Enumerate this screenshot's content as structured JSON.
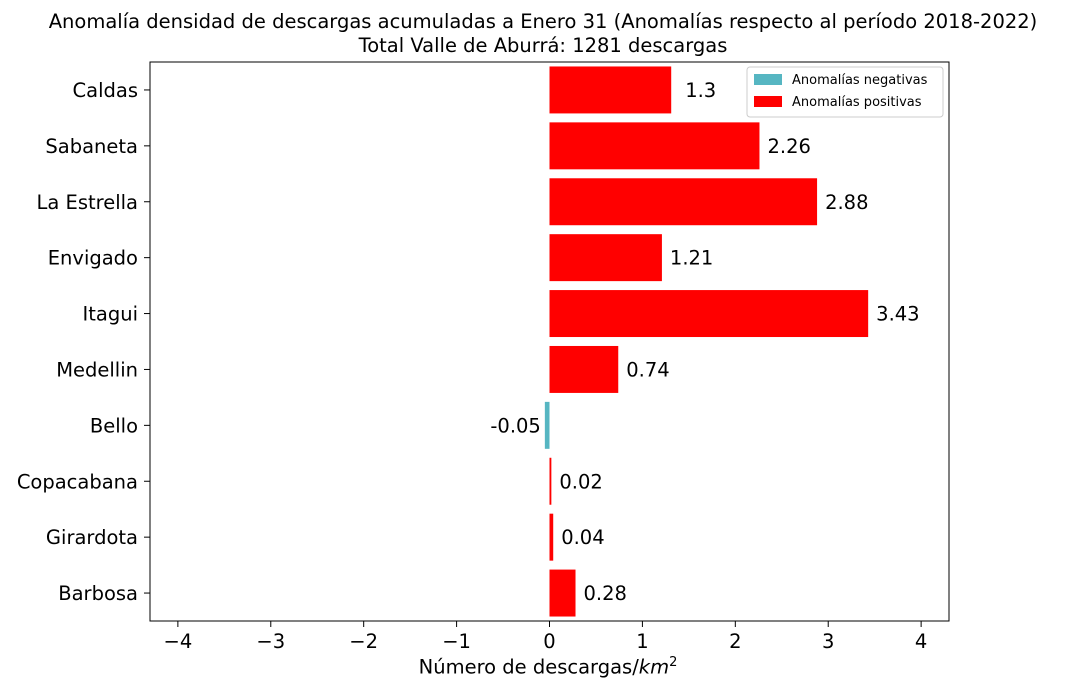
{
  "chart_data": {
    "type": "bar",
    "orientation": "horizontal",
    "title": "Anomalía densidad de descargas acumuladas a Enero 31 (Anomalías respecto al período 2018-2022)",
    "subtitle": "Total Valle de Aburrá: 1281 descargas",
    "xlabel_text": "Número de descargas/",
    "xlabel_unit": "km",
    "xlabel_exp": "2",
    "ylabel": "",
    "xlim": [
      -4.3,
      4.3
    ],
    "xticks": [
      -4,
      -3,
      -2,
      -1,
      0,
      1,
      2,
      3,
      4
    ],
    "xtick_labels": [
      "−4",
      "−3",
      "−2",
      "−1",
      "0",
      "1",
      "2",
      "3",
      "4"
    ],
    "categories": [
      "Caldas",
      "Sabaneta",
      "La Estrella",
      "Envigado",
      "Itagui",
      "Medellin",
      "Bello",
      "Copacabana",
      "Girardota",
      "Barbosa"
    ],
    "values": [
      1.31,
      2.26,
      2.88,
      1.21,
      3.43,
      0.74,
      -0.05,
      0.02,
      0.04,
      0.28
    ],
    "value_labels": [
      "1.3",
      "2.26",
      "2.88",
      "1.21",
      "3.43",
      "0.74",
      "-0.05",
      "0.02",
      "0.04",
      "0.28"
    ],
    "colors": {
      "negative": "#56b6c2",
      "positive": "#ff0000"
    },
    "legend": {
      "placement": "top-right",
      "entries": [
        {
          "label": "Anomalías negativas",
          "color": "#56b6c2"
        },
        {
          "label": "Anomalías positivas",
          "color": "#ff0000"
        }
      ]
    },
    "grid": false
  }
}
